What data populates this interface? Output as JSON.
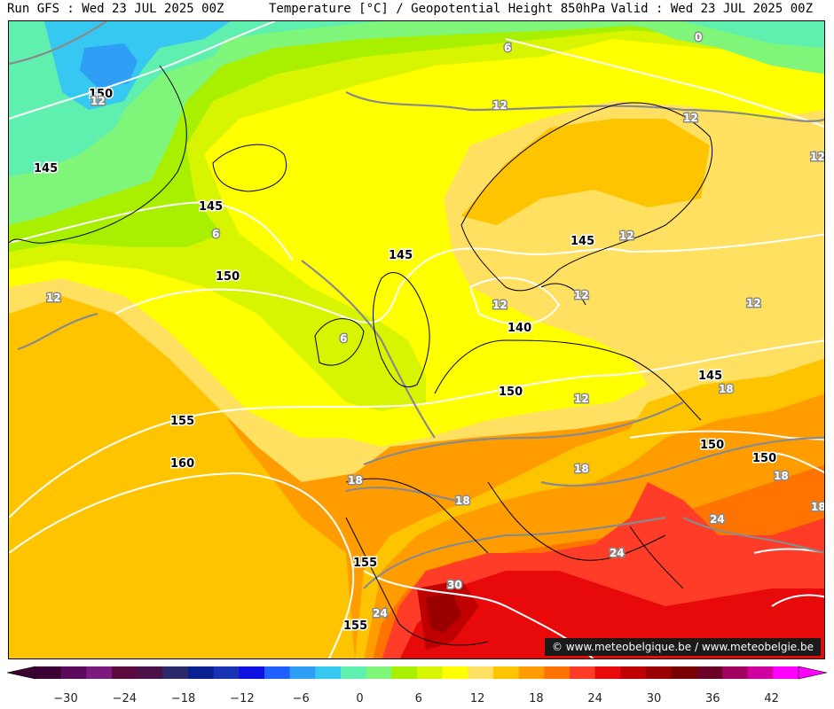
{
  "header": {
    "run": "Run GFS : Wed 23 JUL 2025 00Z",
    "title": "Temperature [°C] / Geopotential Height 850hPa",
    "valid": "Valid : Wed 23 JUL 2025 00Z"
  },
  "credit": "© www.meteobelgique.be / www.meteobelgie.be",
  "colorbar": {
    "colors": [
      "#3a0032",
      "#5c0a5c",
      "#7d1a7d",
      "#5a0a3c",
      "#4a1248",
      "#2b2b6b",
      "#0b2090",
      "#1a33b5",
      "#1010e0",
      "#2060ff",
      "#2f9ef5",
      "#36c8f0",
      "#5ff0b0",
      "#7ff57a",
      "#a8f000",
      "#d7f500",
      "#ffff00",
      "#ffe060",
      "#ffc400",
      "#ff9c00",
      "#ff7400",
      "#ff3c28",
      "#e80a0a",
      "#c00000",
      "#9a0000",
      "#7a0000",
      "#6a0026",
      "#a00060",
      "#d000a0",
      "#ff00ff"
    ],
    "tick_labels": [
      "−30",
      "−24",
      "−18",
      "−12",
      "−6",
      "0",
      "6",
      "12",
      "18",
      "24",
      "30",
      "36",
      "42"
    ]
  },
  "map": {
    "height_labels": [
      "150",
      "145",
      "145",
      "150",
      "145",
      "145",
      "140",
      "150",
      "145",
      "150",
      "150",
      "155",
      "160",
      "155",
      "155"
    ],
    "temp_labels": [
      "0",
      "6",
      "12",
      "12",
      "12",
      "12",
      "12",
      "6",
      "12",
      "12",
      "12",
      "12",
      "6",
      "18",
      "18",
      "18",
      "18",
      "18",
      "18",
      "24",
      "24",
      "24",
      "30",
      "12"
    ]
  }
}
